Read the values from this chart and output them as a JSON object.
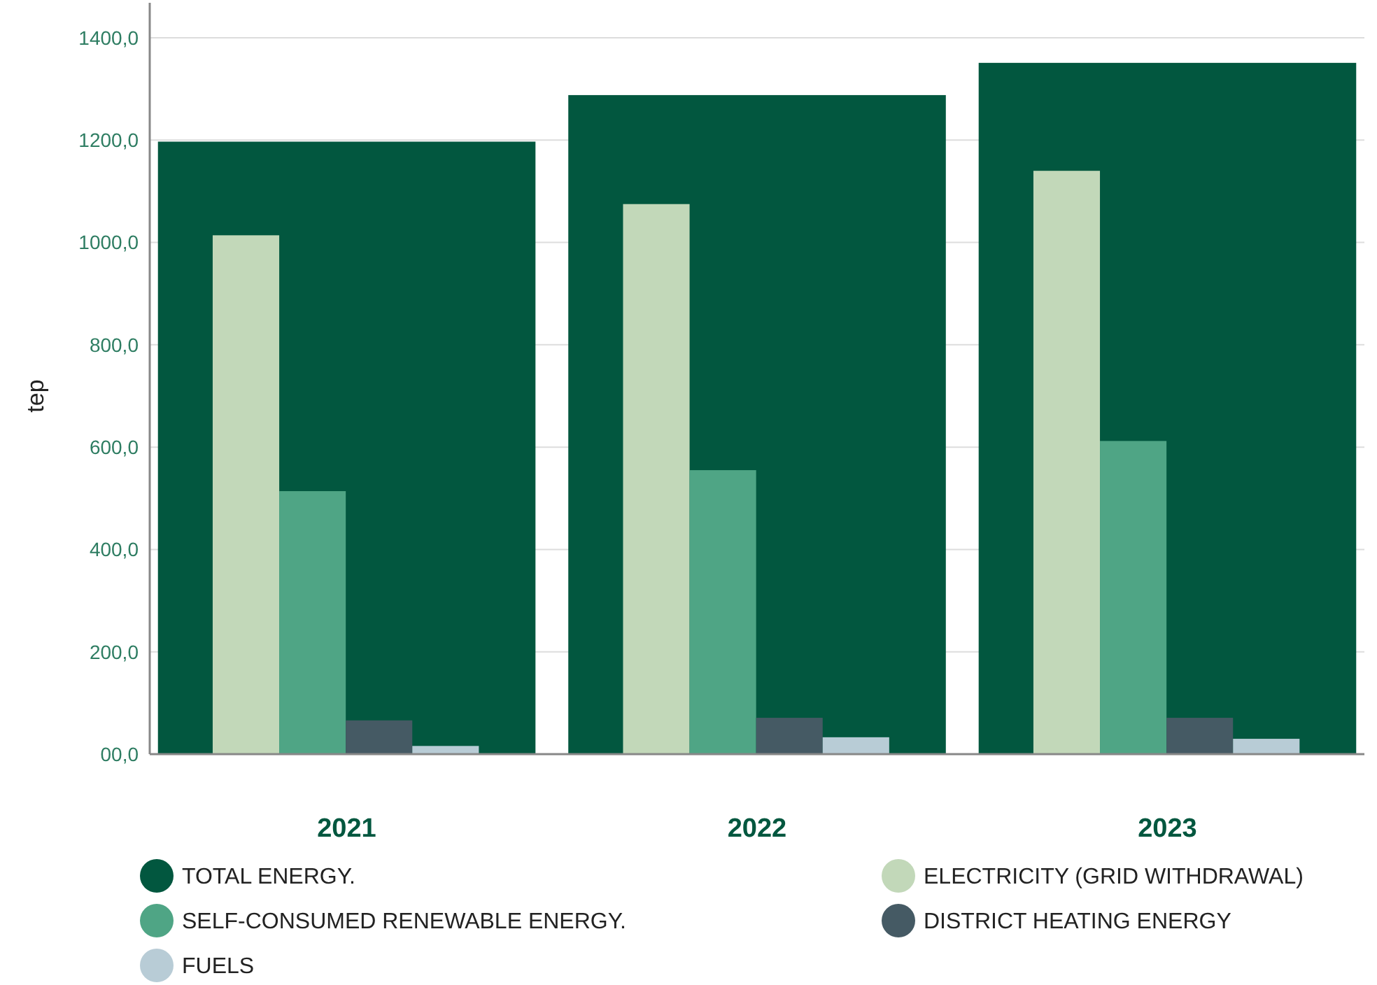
{
  "chart_data": {
    "type": "bar",
    "ylabel": "tep",
    "categories": [
      "2021",
      "2022",
      "2023"
    ],
    "series": [
      {
        "name": "TOTAL ENERGY.",
        "color": "#02573f",
        "values": [
          1197,
          1288,
          1351
        ]
      },
      {
        "name": "ELECTRICITY (GRID WITHDRAWAL)",
        "color": "#c2d8b9",
        "values": [
          1014,
          1075,
          1140
        ]
      },
      {
        "name": "SELF-CONSUMED RENEWABLE ENERGY.",
        "color": "#4fa585",
        "values": [
          514,
          555,
          612
        ]
      },
      {
        "name": "DISTRICT HEATING ENERGY",
        "color": "#455a64",
        "values": [
          66,
          71,
          71
        ]
      },
      {
        "name": "FUELS",
        "color": "#b8ccd6",
        "values": [
          16,
          33,
          30
        ]
      }
    ],
    "ylim": [
      0,
      1400
    ],
    "yticks": [
      {
        "value": 0,
        "label": "00,0"
      },
      {
        "value": 200,
        "label": "200,0"
      },
      {
        "value": 400,
        "label": "400,0"
      },
      {
        "value": 600,
        "label": "600,0"
      },
      {
        "value": 800,
        "label": "800,0"
      },
      {
        "value": 1000,
        "label": "1000,0"
      },
      {
        "value": 1200,
        "label": "1200,0"
      },
      {
        "value": 1400,
        "label": "1400,0"
      }
    ],
    "grid": "y",
    "legend": "bottom"
  }
}
